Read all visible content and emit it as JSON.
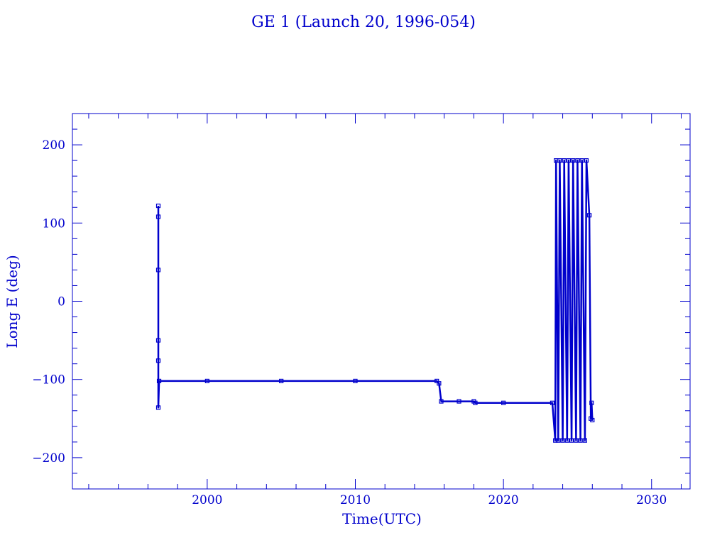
{
  "chart_data": {
    "type": "line",
    "title": "GE 1 (Launch 20, 1996-054)",
    "xlabel": "Time(UTC)",
    "ylabel": "Long E (deg)",
    "xlim": [
      1990.9,
      2032.6
    ],
    "ylim": [
      -240,
      240
    ],
    "xticks": [
      2000,
      2010,
      2020,
      2030
    ],
    "yticks": [
      -200,
      -100,
      0,
      100,
      200
    ],
    "grid": false,
    "color": "#0000cc",
    "series": [
      {
        "points": [
          [
            1996.7,
            122
          ],
          [
            1996.7,
            108
          ],
          [
            1996.7,
            40
          ],
          [
            1996.7,
            -50
          ],
          [
            1996.7,
            -76
          ],
          [
            1996.7,
            -136
          ],
          [
            1996.75,
            -102
          ],
          [
            2000,
            -102
          ],
          [
            2005,
            -102
          ],
          [
            2010,
            -102
          ],
          [
            2015.5,
            -102
          ],
          [
            2015.65,
            -105
          ],
          [
            2015.8,
            -128
          ],
          [
            2017,
            -128
          ],
          [
            2018,
            -128
          ],
          [
            2018.1,
            -130
          ],
          [
            2020,
            -130
          ],
          [
            2023.3,
            -130
          ],
          [
            2023.5,
            -178
          ],
          [
            2023.55,
            180
          ],
          [
            2023.7,
            -178
          ],
          [
            2023.8,
            180
          ],
          [
            2024.0,
            -178
          ],
          [
            2024.1,
            180
          ],
          [
            2024.3,
            -178
          ],
          [
            2024.4,
            180
          ],
          [
            2024.6,
            -178
          ],
          [
            2024.7,
            180
          ],
          [
            2024.9,
            -178
          ],
          [
            2025.0,
            180
          ],
          [
            2025.2,
            -178
          ],
          [
            2025.3,
            180
          ],
          [
            2025.5,
            -178
          ],
          [
            2025.6,
            180
          ],
          [
            2025.8,
            110
          ],
          [
            2025.9,
            -150
          ],
          [
            2025.95,
            -130
          ],
          [
            2026.0,
            -152
          ]
        ]
      }
    ]
  }
}
